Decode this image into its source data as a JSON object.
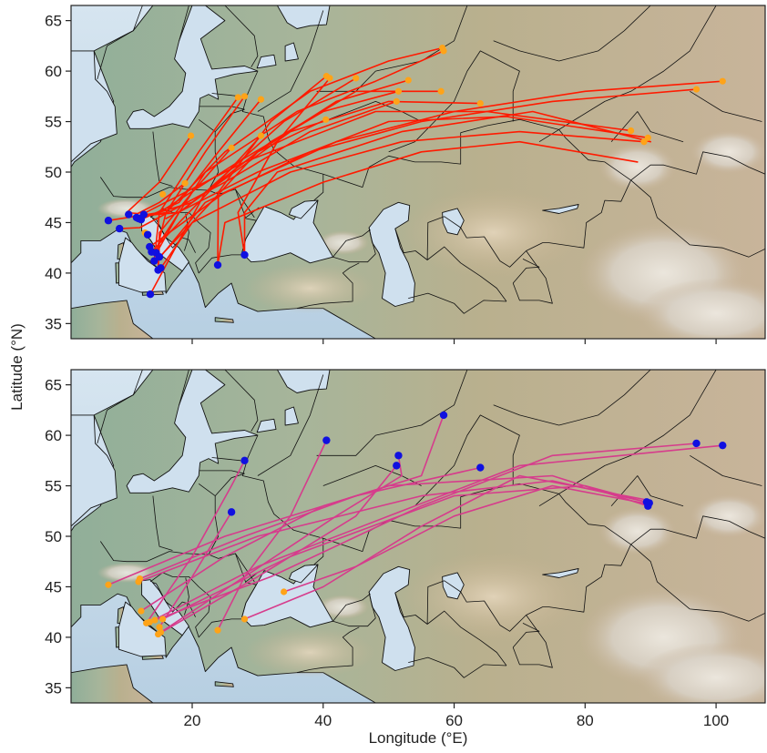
{
  "figure": {
    "xlabel": "Longitude (°E)",
    "ylabel": "Latitude (°N)"
  },
  "axes": {
    "x_ticks": [
      20,
      40,
      60,
      80,
      100
    ],
    "y_ticks": [
      35,
      40,
      45,
      50,
      55,
      60,
      65
    ],
    "xlim": [
      1.5,
      107.5
    ],
    "ylim": [
      33.5,
      66.5
    ]
  },
  "colors": {
    "sea": "#c7dcec",
    "land": "#b6ad8c",
    "border": "#111111",
    "track_top": "#ff1a00",
    "track_bottom": "#d63c8c",
    "start_orange": "#ffa318",
    "end_blue": "#1010e0"
  },
  "chart_data": [
    {
      "type": "map-tracks",
      "panel": "top",
      "series": [
        {
          "points": [
            [
              58.2,
              62.3
            ],
            [
              50,
              61
            ],
            [
              38,
              58
            ],
            [
              25,
              52
            ],
            [
              16,
              46
            ],
            [
              14.5,
              42
            ]
          ]
        },
        {
          "points": [
            [
              58.4,
              62.0
            ],
            [
              48,
              59
            ],
            [
              36,
              56
            ],
            [
              22,
              50
            ],
            [
              15,
              43
            ],
            [
              14.8,
              40.3
            ]
          ]
        },
        {
          "points": [
            [
              101,
              59.0
            ],
            [
              80,
              58
            ],
            [
              60,
              56
            ],
            [
              42,
              53
            ],
            [
              25,
              48
            ],
            [
              13.5,
              42.6
            ]
          ]
        },
        {
          "points": [
            [
              97,
              58.2
            ],
            [
              75,
              57
            ],
            [
              55,
              55
            ],
            [
              38,
              52
            ],
            [
              22,
              47
            ],
            [
              15,
              41.5
            ]
          ]
        },
        {
          "points": [
            [
              89,
              53
            ],
            [
              70,
              54
            ],
            [
              52,
              53
            ],
            [
              35,
              50
            ],
            [
              20,
              45
            ],
            [
              14,
              40.9
            ]
          ]
        },
        {
          "points": [
            [
              89.6,
              53.4
            ],
            [
              68,
              55.5
            ],
            [
              50,
              55
            ],
            [
              30,
              50
            ],
            [
              16,
              45.4
            ]
          ]
        },
        {
          "points": [
            [
              87,
              54.1
            ],
            [
              65,
              56
            ],
            [
              48,
              56
            ],
            [
              28,
              51
            ],
            [
              12,
              45.7
            ]
          ]
        },
        {
          "points": [
            [
              64,
              56.8
            ],
            [
              50,
              57
            ],
            [
              35,
              54
            ],
            [
              20,
              47
            ],
            [
              11.8,
              45.4
            ]
          ]
        },
        {
          "points": [
            [
              58,
              58
            ],
            [
              45,
              58
            ],
            [
              32,
              53
            ],
            [
              18,
              46
            ],
            [
              11,
              45.6
            ]
          ]
        },
        {
          "points": [
            [
              51.5,
              58.0
            ],
            [
              40,
              56
            ],
            [
              27,
              51
            ],
            [
              15,
              46
            ],
            [
              7.2,
              45.2
            ]
          ]
        },
        {
          "points": [
            [
              51.2,
              57.0
            ],
            [
              38,
              54
            ],
            [
              25,
              49
            ],
            [
              12,
              44.5
            ],
            [
              8.9,
              44.4
            ]
          ]
        },
        {
          "points": [
            [
              45,
              59.3
            ],
            [
              34,
              55
            ],
            [
              22,
              48
            ],
            [
              13.6,
              37.9
            ]
          ]
        },
        {
          "points": [
            [
              40.5,
              59.5
            ],
            [
              32,
              55
            ],
            [
              24,
              48
            ],
            [
              23.9,
              40.8
            ]
          ]
        },
        {
          "points": [
            [
              41.0,
              59.3
            ],
            [
              33,
              53
            ],
            [
              27,
              46
            ],
            [
              28,
              41.8
            ]
          ]
        },
        {
          "points": [
            [
              40.4,
              55.2
            ],
            [
              30,
              52
            ],
            [
              20,
              45
            ],
            [
              15.2,
              40.5
            ]
          ]
        },
        {
          "points": [
            [
              30.5,
              57.2
            ],
            [
              24,
              52
            ],
            [
              18,
              47
            ],
            [
              12.2,
              45.3
            ]
          ]
        },
        {
          "points": [
            [
              28,
              57.5
            ],
            [
              22,
              52
            ],
            [
              16,
              46
            ],
            [
              11.5,
              45.5
            ]
          ]
        },
        {
          "points": [
            [
              27,
              57.4
            ],
            [
              21,
              52
            ],
            [
              15,
              46
            ],
            [
              14.2,
              41.2
            ]
          ]
        },
        {
          "points": [
            [
              30.5,
              53.6
            ],
            [
              24,
              49
            ],
            [
              18,
              45
            ],
            [
              13.8,
              42.1
            ]
          ]
        },
        {
          "points": [
            [
              26,
              52.4
            ],
            [
              20,
              48
            ],
            [
              15,
              44
            ],
            [
              14.8,
              40.4
            ]
          ]
        },
        {
          "points": [
            [
              53,
              59.1
            ],
            [
              42,
              57
            ],
            [
              30,
              52
            ],
            [
              18,
              46
            ],
            [
              14.3,
              41.7
            ]
          ]
        },
        {
          "points": [
            [
              19.8,
              53.6
            ],
            [
              15,
              49
            ],
            [
              10,
              46
            ],
            [
              11.6,
              45.9
            ]
          ]
        },
        {
          "points": [
            [
              18.9,
              48.9
            ],
            [
              15,
              47
            ],
            [
              11.7,
              45.9
            ]
          ]
        },
        {
          "points": [
            [
              88,
              51
            ],
            [
              70,
              53
            ],
            [
              55,
              52
            ],
            [
              40,
              49
            ],
            [
              25,
              45
            ],
            [
              23.9,
              40.8
            ]
          ]
        },
        {
          "points": [
            [
              90,
              53.0
            ],
            [
              72,
              56
            ],
            [
              52,
              54
            ],
            [
              33,
              50
            ],
            [
              28,
              46
            ],
            [
              28,
              41.8
            ]
          ]
        }
      ],
      "starts": [
        [
          58.2,
          62.3
        ],
        [
          58.4,
          62.0
        ],
        [
          101,
          59.0
        ],
        [
          97,
          58.2
        ],
        [
          89,
          53
        ],
        [
          89.6,
          53.4
        ],
        [
          87,
          54.1
        ],
        [
          64,
          56.8
        ],
        [
          58,
          58
        ],
        [
          51.5,
          58.0
        ],
        [
          51.2,
          57.0
        ],
        [
          45,
          59.3
        ],
        [
          40.5,
          59.5
        ],
        [
          41.0,
          59.3
        ],
        [
          40.4,
          55.2
        ],
        [
          30.5,
          57.2
        ],
        [
          28,
          57.5
        ],
        [
          27,
          57.4
        ],
        [
          30.5,
          53.6
        ],
        [
          26,
          52.4
        ],
        [
          53,
          59.1
        ],
        [
          19.8,
          53.6
        ],
        [
          18.9,
          48.9
        ],
        [
          15.5,
          47.8
        ],
        [
          12.8,
          44.0
        ]
      ],
      "ends": [
        [
          7.2,
          45.2
        ],
        [
          8.9,
          44.4
        ],
        [
          10.3,
          45.8
        ],
        [
          11.5,
          45.5
        ],
        [
          11.8,
          45.4
        ],
        [
          12.2,
          45.3
        ],
        [
          12.6,
          45.8
        ],
        [
          13.2,
          43.8
        ],
        [
          13.5,
          42.6
        ],
        [
          13.8,
          42.1
        ],
        [
          14.2,
          41.2
        ],
        [
          14.5,
          42.0
        ],
        [
          14.8,
          40.3
        ],
        [
          15.0,
          41.6
        ],
        [
          15.2,
          40.5
        ],
        [
          13.6,
          37.9
        ],
        [
          23.9,
          40.8
        ],
        [
          28.0,
          41.8
        ]
      ]
    },
    {
      "type": "map-tracks",
      "panel": "bottom",
      "series": [
        {
          "points": [
            [
              12.2,
              42.6
            ],
            [
              25,
              48
            ],
            [
              40,
              53
            ],
            [
              55,
              56
            ],
            [
              58.4,
              62.0
            ]
          ]
        },
        {
          "points": [
            [
              15.2,
              40.5
            ],
            [
              28,
              46
            ],
            [
              42,
              52
            ],
            [
              52,
              56
            ],
            [
              51.5,
              58.0
            ]
          ]
        },
        {
          "points": [
            [
              14.8,
              40.3
            ],
            [
              30,
              46
            ],
            [
              45,
              52
            ],
            [
              51.2,
              57.0
            ]
          ]
        },
        {
          "points": [
            [
              13.5,
              41.5
            ],
            [
              30,
              47
            ],
            [
              50,
              52
            ],
            [
              70,
              57
            ],
            [
              101,
              59.0
            ]
          ]
        },
        {
          "points": [
            [
              14.3,
              41.7
            ],
            [
              32,
              46
            ],
            [
              55,
              53
            ],
            [
              75,
              58
            ],
            [
              97,
              59.2
            ]
          ]
        },
        {
          "points": [
            [
              15.5,
              41.8
            ],
            [
              35,
              48
            ],
            [
              60,
              54
            ],
            [
              80,
              55
            ],
            [
              89.8,
              53.3
            ]
          ]
        },
        {
          "points": [
            [
              11.8,
              45.5
            ],
            [
              30,
              50
            ],
            [
              55,
              54
            ],
            [
              75,
              55.5
            ],
            [
              89.4,
              53.4
            ]
          ]
        },
        {
          "points": [
            [
              7.2,
              45.2
            ],
            [
              25,
              50
            ],
            [
              50,
              55
            ],
            [
              75,
              56
            ],
            [
              89.6,
              53.0
            ]
          ]
        },
        {
          "points": [
            [
              12.0,
              45.8
            ],
            [
              28,
              50
            ],
            [
              45,
              54
            ],
            [
              64,
              56.8
            ]
          ]
        },
        {
          "points": [
            [
              23.9,
              40.7
            ],
            [
              28,
              46
            ],
            [
              35,
              52
            ],
            [
              40.5,
              59.5
            ]
          ]
        },
        {
          "points": [
            [
              28.0,
              41.8
            ],
            [
              40,
              45
            ],
            [
              55,
              51
            ],
            [
              70,
              56
            ],
            [
              89.5,
              53.6
            ]
          ]
        },
        {
          "points": [
            [
              34.0,
              44.5
            ],
            [
              45,
              47
            ],
            [
              60,
              52
            ],
            [
              75,
              55
            ],
            [
              89.7,
              53.2
            ]
          ]
        },
        {
          "points": [
            [
              13.0,
              41.4
            ],
            [
              20,
              48
            ],
            [
              26,
              55
            ],
            [
              28,
              57.5
            ]
          ]
        },
        {
          "points": [
            [
              15.0,
              41.0
            ],
            [
              20,
              46
            ],
            [
              26,
              52.4
            ]
          ]
        }
      ],
      "starts": [
        [
          12.2,
          42.6
        ],
        [
          15.2,
          40.5
        ],
        [
          14.8,
          40.3
        ],
        [
          13.5,
          41.5
        ],
        [
          14.3,
          41.7
        ],
        [
          15.5,
          41.8
        ],
        [
          11.8,
          45.5
        ],
        [
          7.2,
          45.2
        ],
        [
          12.0,
          45.8
        ],
        [
          23.9,
          40.7
        ],
        [
          28.0,
          41.8
        ],
        [
          34.0,
          44.5
        ],
        [
          13.0,
          41.4
        ],
        [
          15.0,
          41.0
        ]
      ],
      "ends": [
        [
          58.4,
          62.0
        ],
        [
          51.5,
          58.0
        ],
        [
          51.2,
          57.0
        ],
        [
          101,
          59.0
        ],
        [
          97,
          59.2
        ],
        [
          89.8,
          53.3
        ],
        [
          89.4,
          53.4
        ],
        [
          89.6,
          53.0
        ],
        [
          64,
          56.8
        ],
        [
          40.5,
          59.5
        ],
        [
          28,
          57.5
        ],
        [
          26,
          52.4
        ]
      ]
    }
  ]
}
